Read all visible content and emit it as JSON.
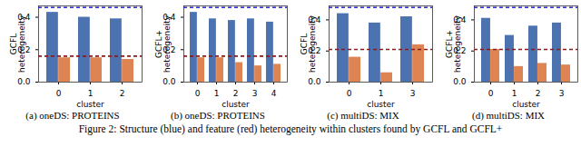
{
  "chart_data": [
    {
      "type": "bar",
      "title": "(a) oneDS: PROTEINS",
      "xlabel": "cluster",
      "ylabel": "GCFL heterogeneity",
      "categories": [
        0,
        1,
        2
      ],
      "series": [
        {
          "color": "#4c72b0",
          "values": [
            0.43,
            0.4,
            0.39
          ]
        },
        {
          "color": "#dd8452",
          "values": [
            0.15,
            0.15,
            0.14
          ]
        }
      ],
      "hlines": [
        {
          "value": 0.46,
          "color": "#2626d9",
          "line_style": "dashed"
        },
        {
          "value": 0.16,
          "color": "#8b1a1a",
          "line_style": "dashed"
        }
      ],
      "ylim": [
        0,
        0.47
      ],
      "yticks": [
        {
          "value": 0,
          "label": "0.0"
        },
        0.2,
        0.4
      ]
    },
    {
      "type": "bar",
      "title": "(b) oneDS: PROTEINS",
      "xlabel": "cluster",
      "ylabel": "GCFL+ heterogeneity",
      "categories": [
        0,
        1,
        2,
        3,
        4
      ],
      "series": [
        {
          "color": "#4c72b0",
          "values": [
            0.43,
            0.39,
            0.38,
            0.39,
            0.37
          ]
        },
        {
          "color": "#dd8452",
          "values": [
            0.15,
            0.15,
            0.12,
            0.1,
            0.11
          ]
        }
      ],
      "hlines": [
        {
          "value": 0.46,
          "color": "#2626d9",
          "line_style": "dashed"
        },
        {
          "value": 0.16,
          "color": "#8b1a1a",
          "line_style": "dashed"
        }
      ],
      "ylim": [
        0,
        0.47
      ],
      "yticks": [
        {
          "value": 0,
          "label": "0.0"
        },
        0.2,
        0.4
      ]
    },
    {
      "type": "bar",
      "title": "(c) multiDS: MIX",
      "xlabel": "cluster",
      "ylabel": "GCFL heterogeneity",
      "categories": [
        0,
        1,
        3
      ],
      "series": [
        {
          "color": "#4c72b0",
          "values": [
            0.44,
            0.38,
            0.42
          ]
        },
        {
          "color": "#dd8452",
          "values": [
            0.16,
            0.06,
            0.24
          ]
        }
      ],
      "hlines": [
        {
          "value": 0.48,
          "color": "#2626d9",
          "line_style": "dashed"
        },
        {
          "value": 0.21,
          "color": "#8b1a1a",
          "line_style": "dashed"
        }
      ],
      "ylim": [
        0,
        0.49
      ],
      "yticks": [
        {
          "value": 0,
          "label": "0.0"
        },
        0.2,
        0.4
      ]
    },
    {
      "type": "bar",
      "title": "(d) multiDS: MIX",
      "xlabel": "cluster",
      "ylabel": "GCFL+ heterogeneity",
      "categories": [
        0,
        1,
        2,
        3
      ],
      "series": [
        {
          "color": "#4c72b0",
          "values": [
            0.41,
            0.3,
            0.36,
            0.38
          ]
        },
        {
          "color": "#dd8452",
          "values": [
            0.21,
            0.1,
            0.12,
            0.11
          ]
        }
      ],
      "hlines": [
        {
          "value": 0.48,
          "color": "#2626d9",
          "line_style": "dashed"
        },
        {
          "value": 0.21,
          "color": "#8b1a1a",
          "line_style": "dashed"
        }
      ],
      "ylim": [
        0,
        0.49
      ],
      "yticks": [
        {
          "value": 0,
          "label": "0.0"
        },
        0.2,
        0.4
      ]
    }
  ],
  "caption": "Figure 2: Structure (blue) and feature (red) heterogeneity within clusters found by GCFL and GCFL+"
}
